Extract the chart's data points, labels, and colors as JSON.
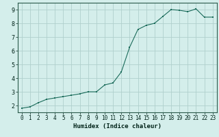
{
  "x": [
    0,
    1,
    2,
    3,
    4,
    5,
    6,
    7,
    8,
    9,
    10,
    11,
    12,
    13,
    14,
    15,
    16,
    17,
    18,
    19,
    20,
    21,
    22,
    23
  ],
  "y": [
    1.8,
    1.9,
    2.2,
    2.45,
    2.55,
    2.65,
    2.75,
    2.85,
    3.0,
    3.0,
    3.5,
    3.65,
    4.45,
    6.25,
    7.55,
    7.85,
    8.0,
    8.5,
    9.0,
    8.95,
    8.85,
    9.05,
    8.45,
    8.45
  ],
  "xlabel": "Humidex (Indice chaleur)",
  "xlim": [
    -0.5,
    23.5
  ],
  "ylim": [
    1.5,
    9.5
  ],
  "yticks": [
    2,
    3,
    4,
    5,
    6,
    7,
    8,
    9
  ],
  "xticks": [
    0,
    1,
    2,
    3,
    4,
    5,
    6,
    7,
    8,
    9,
    10,
    11,
    12,
    13,
    14,
    15,
    16,
    17,
    18,
    19,
    20,
    21,
    22,
    23
  ],
  "line_color": "#1a6b5a",
  "marker_color": "#1a6b5a",
  "bg_color": "#d4eeeb",
  "grid_color": "#b0d0cc",
  "axis_color": "#2a5a4a",
  "label_color": "#002218",
  "tick_color": "#002218"
}
